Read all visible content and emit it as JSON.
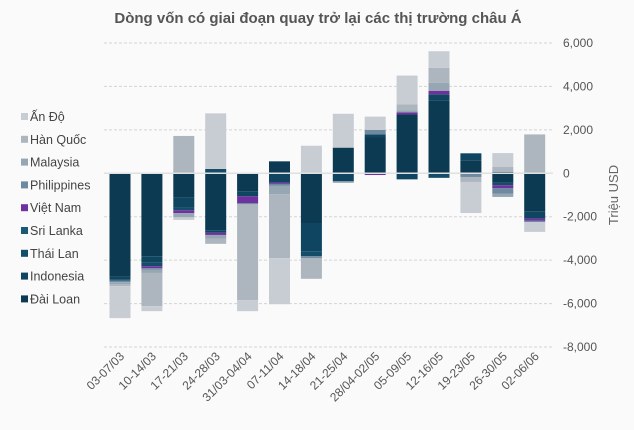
{
  "chart_data": {
    "type": "bar",
    "stacked": true,
    "title": "Dòng vốn có giai đoạn quay trở lại các thị trường châu Á",
    "xlabel": "",
    "ylabel": "Triệu USD",
    "ylim": [
      -8000,
      6000
    ],
    "yticks": [
      6000,
      4000,
      2000,
      0,
      -2000,
      -4000,
      -6000,
      -8000
    ],
    "ytick_labels": [
      "6,000",
      "4,000",
      "2,000",
      "0",
      "-2,000",
      "-4,000",
      "-6,000",
      "-8,000"
    ],
    "grid": true,
    "legend_position": "left",
    "categories": [
      "03-07/03",
      "10-14/03",
      "17-21/03",
      "24-28/03",
      "31/03-04/04",
      "07-11/04",
      "14-18/04",
      "21-25/04",
      "28/04-02/05",
      "05-09/05",
      "12-16/05",
      "19-23/05",
      "26-30/05",
      "02-06/06"
    ],
    "series": [
      {
        "name": "Đài Loan",
        "color": "#0b3a52",
        "values": [
          -4770,
          -3820,
          -1130,
          -2620,
          -830,
          550,
          -2290,
          1180,
          1670,
          2710,
          3360,
          600,
          -440,
          -1750
        ]
      },
      {
        "name": "Indonesia",
        "color": "#0f4560",
        "values": [
          -130,
          -300,
          -450,
          -120,
          -230,
          -430,
          -1300,
          -370,
          120,
          -280,
          280,
          320,
          60,
          -340
        ]
      },
      {
        "name": "Thái Lan",
        "color": "#134d69",
        "values": [
          -50,
          -160,
          -120,
          200,
          0,
          0,
          -230,
          0,
          0,
          0,
          -210,
          0,
          -110,
          0
        ]
      },
      {
        "name": "Sri Lanka",
        "color": "#1a5a78",
        "values": [
          0,
          0,
          0,
          0,
          0,
          0,
          0,
          0,
          0,
          0,
          0,
          0,
          0,
          0
        ]
      },
      {
        "name": "Việt Nam",
        "color": "#7030a0",
        "values": [
          0,
          -90,
          -130,
          -100,
          -310,
          -60,
          0,
          0,
          -80,
          90,
          150,
          0,
          -130,
          -100
        ]
      },
      {
        "name": "Philippines",
        "color": "#6f8aa0",
        "values": [
          -60,
          -60,
          0,
          0,
          -60,
          -90,
          -80,
          0,
          210,
          0,
          0,
          -170,
          -250,
          -60
        ]
      },
      {
        "name": "Malaysia",
        "color": "#97a6b3",
        "values": [
          -90,
          -160,
          -200,
          -180,
          0,
          -390,
          0,
          -70,
          0,
          90,
          370,
          0,
          -160,
          0
        ]
      },
      {
        "name": "Hàn Quốc",
        "color": "#adb6bf",
        "values": [
          -100,
          -1530,
          1720,
          -230,
          -4410,
          -2940,
          -960,
          0,
          0,
          280,
          690,
          -230,
          230,
          1790
        ]
      },
      {
        "name": "Ấn Độ",
        "color": "#c8cdd4",
        "values": [
          -1470,
          -230,
          -120,
          2560,
          -510,
          -2120,
          1270,
          1560,
          610,
          1330,
          770,
          -1430,
          640,
          -450
        ]
      }
    ]
  }
}
